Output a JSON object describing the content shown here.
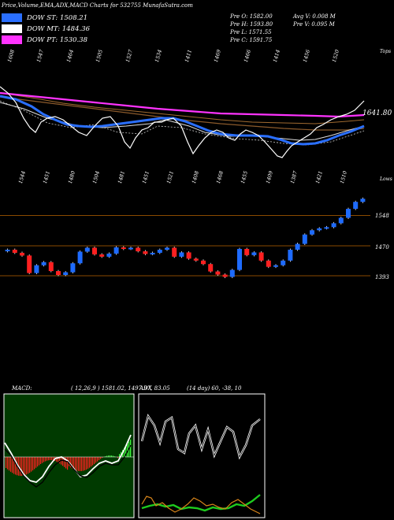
{
  "header": {
    "title": "Price,Volume,EMA,ADX,MACD Charts for 532755 MunafaSutra.com",
    "dow_st": "DOW ST: 1508.21",
    "dow_mt": "DOW MT: 1484.36",
    "dow_pt": "DOW PT: 1530.38",
    "stats_left": [
      "Pre   O: 1582.00",
      "Pre   H: 1593.80",
      "Pre   L: 1571.55",
      "Pre   C: 1591.75"
    ],
    "stats_right": [
      "Avg V: 0.008 M",
      "Pre   V: 0.095 M"
    ],
    "colors": {
      "st": "#2a6fff",
      "mt": "#ffffff",
      "pt": "#ff33ff"
    }
  },
  "ema_panel": {
    "label_right": "Tops",
    "last_value": "1641.80",
    "top_ticks": [
      "1608",
      "1547",
      "1464",
      "1505",
      "1527",
      "1534",
      "1411",
      "1469",
      "1466",
      "1414",
      "1456",
      "1520"
    ],
    "bottom_ticks": [
      "1544",
      "1451",
      "1480",
      "1504",
      "1481",
      "1451",
      "1521",
      "1408",
      "1468",
      "1455",
      "1409",
      "1387",
      "1421",
      "1510"
    ]
  },
  "price_panel": {
    "label_right": "Lows",
    "levels": [
      "1548",
      "1470",
      "1393"
    ]
  },
  "macd": {
    "label": "MACD:",
    "params": "( 12,26,9 ) 1581.02, 1497.97, 83.05"
  },
  "adx": {
    "label": "ADX",
    "params": "(14  day) 60, -38, 10"
  },
  "chart_data": {
    "type": "candlestick",
    "levels": [
      1548,
      1470,
      1393
    ],
    "closes": [
      1460,
      1452,
      1445,
      1400,
      1420,
      1428,
      1405,
      1395,
      1402,
      1425,
      1455,
      1465,
      1448,
      1442,
      1450,
      1466,
      1462,
      1465,
      1456,
      1449,
      1452,
      1460,
      1465,
      1442,
      1453,
      1437,
      1432,
      1423,
      1404,
      1396,
      1390,
      1408,
      1462,
      1446,
      1453,
      1432,
      1416,
      1420,
      1432,
      1460,
      1475,
      1499,
      1510,
      1515,
      1518,
      1528,
      1542,
      1565,
      1583,
      1591
    ]
  }
}
